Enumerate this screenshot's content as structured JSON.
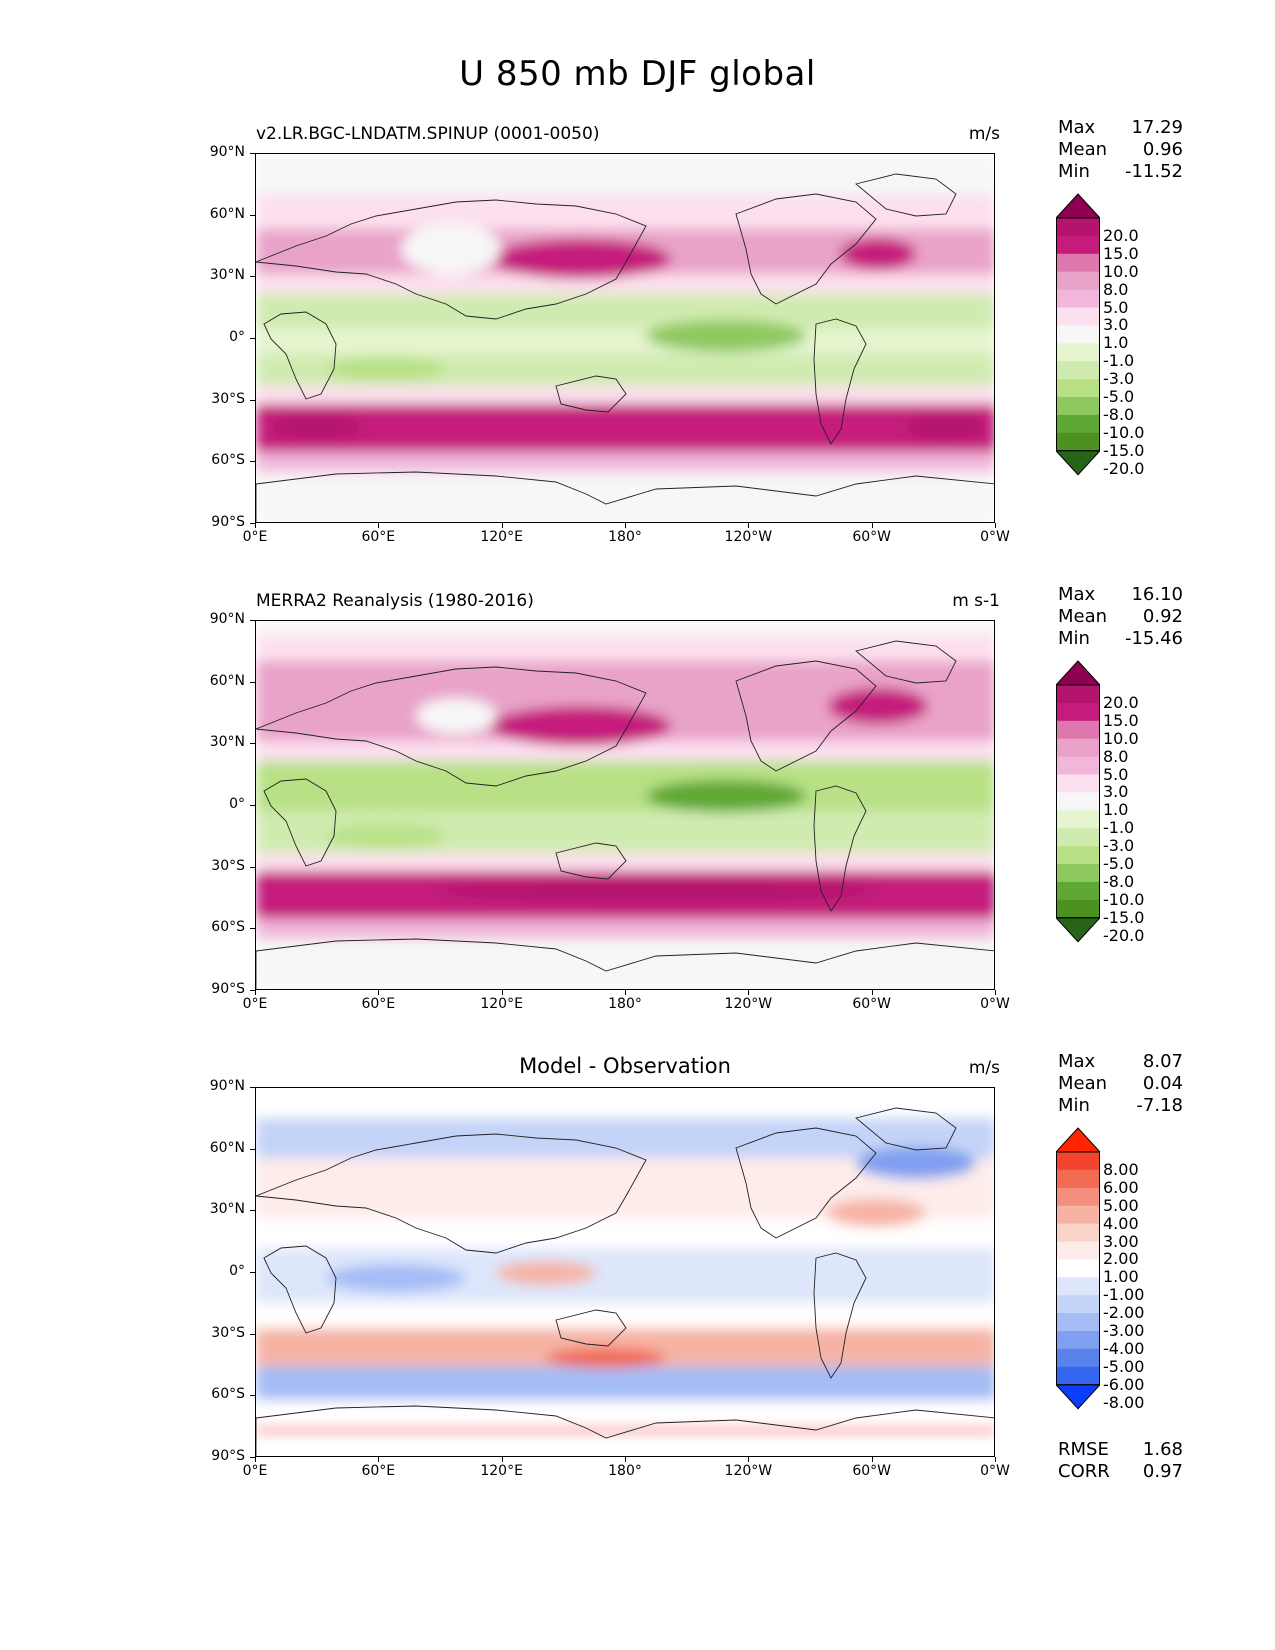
{
  "title": "U 850 mb DJF global",
  "axes": {
    "lat_labels": [
      "90°N",
      "60°N",
      "30°N",
      "0°",
      "30°S",
      "60°S",
      "90°S"
    ],
    "lon_labels": [
      "0°E",
      "60°E",
      "120°E",
      "180°",
      "120°W",
      "60°W",
      "0°W"
    ]
  },
  "panels": [
    {
      "title": "v2.LR.BGC-LNDATM.SPINUP (0001-0050)",
      "units": "m/s",
      "stats": [
        {
          "label": "Max",
          "value": "17.29"
        },
        {
          "label": "Mean",
          "value": "0.96"
        },
        {
          "label": "Min",
          "value": "-11.52"
        }
      ],
      "colorbar": {
        "labels": [
          "20.0",
          "15.0",
          "10.0",
          "8.0",
          "5.0",
          "3.0",
          "1.0",
          "-1.0",
          "-3.0",
          "-5.0",
          "-8.0",
          "-10.0",
          "-15.0",
          "-20.0"
        ],
        "colors": [
          "#8e0152",
          "#b5146e",
          "#c51b7d",
          "#de77ae",
          "#e9a3c9",
          "#f1b6da",
          "#fde0ef",
          "#f7f7f7",
          "#e6f5d0",
          "#d0ebb0",
          "#b8e186",
          "#8ec95f",
          "#5fa833",
          "#4d9221",
          "#276419"
        ]
      }
    },
    {
      "title": "MERRA2 Reanalysis (1980-2016)",
      "units": "m s-1",
      "stats": [
        {
          "label": "Max",
          "value": "16.10"
        },
        {
          "label": "Mean",
          "value": "0.92"
        },
        {
          "label": "Min",
          "value": "-15.46"
        }
      ],
      "colorbar": {
        "labels": [
          "20.0",
          "15.0",
          "10.0",
          "8.0",
          "5.0",
          "3.0",
          "1.0",
          "-1.0",
          "-3.0",
          "-5.0",
          "-8.0",
          "-10.0",
          "-15.0",
          "-20.0"
        ],
        "colors": [
          "#8e0152",
          "#b5146e",
          "#c51b7d",
          "#de77ae",
          "#e9a3c9",
          "#f1b6da",
          "#fde0ef",
          "#f7f7f7",
          "#e6f5d0",
          "#d0ebb0",
          "#b8e186",
          "#8ec95f",
          "#5fa833",
          "#4d9221",
          "#276419"
        ]
      }
    },
    {
      "title": "Model - Observation",
      "units": "m/s",
      "stats": [
        {
          "label": "Max",
          "value": "8.07"
        },
        {
          "label": "Mean",
          "value": "0.04"
        },
        {
          "label": "Min",
          "value": "-7.18"
        }
      ],
      "extra_stats": [
        {
          "label": "RMSE",
          "value": "1.68"
        },
        {
          "label": "CORR",
          "value": "0.97"
        }
      ],
      "colorbar": {
        "labels": [
          "8.00",
          "6.00",
          "5.00",
          "4.00",
          "3.00",
          "2.00",
          "1.00",
          "-1.00",
          "-2.00",
          "-3.00",
          "-4.00",
          "-5.00",
          "-6.00",
          "-8.00"
        ],
        "colors": [
          "#ff2600",
          "#f4442d",
          "#f26b55",
          "#f3907d",
          "#f6b3a4",
          "#f9d2c8",
          "#fdecea",
          "#ffffff",
          "#dde6fb",
          "#c4d3f8",
          "#a5bcf5",
          "#7f9ff0",
          "#5a82ec",
          "#3566f0",
          "#0a3dff"
        ]
      }
    }
  ],
  "bands": {
    "model": [
      {
        "y0": 0,
        "y1": 14,
        "level": 0.2
      },
      {
        "y0": 14,
        "y1": 40,
        "level": 0.5
      },
      {
        "y0": 40,
        "y1": 75,
        "level": 2.5
      },
      {
        "y0": 75,
        "y1": 120,
        "level": 5
      },
      {
        "y0": 120,
        "y1": 140,
        "level": 2
      },
      {
        "y0": 140,
        "y1": 175,
        "level": -5
      },
      {
        "y0": 175,
        "y1": 200,
        "level": -3
      },
      {
        "y0": 200,
        "y1": 232,
        "level": -5
      },
      {
        "y0": 232,
        "y1": 250,
        "level": 2
      },
      {
        "y0": 250,
        "y1": 298,
        "level": 12
      },
      {
        "y0": 298,
        "y1": 318,
        "level": 4
      },
      {
        "y0": 318,
        "y1": 370,
        "level": 0.2
      }
    ],
    "obs": [
      {
        "y0": 0,
        "y1": 14,
        "level": 0.5
      },
      {
        "y0": 14,
        "y1": 40,
        "level": 2
      },
      {
        "y0": 40,
        "y1": 75,
        "level": 5
      },
      {
        "y0": 75,
        "y1": 120,
        "level": 6
      },
      {
        "y0": 120,
        "y1": 140,
        "level": 1
      },
      {
        "y0": 140,
        "y1": 190,
        "level": -8
      },
      {
        "y0": 190,
        "y1": 232,
        "level": -4
      },
      {
        "y0": 232,
        "y1": 250,
        "level": 1
      },
      {
        "y0": 250,
        "y1": 298,
        "level": 12
      },
      {
        "y0": 298,
        "y1": 318,
        "level": 4
      },
      {
        "y0": 318,
        "y1": 370,
        "level": 0.2
      }
    ],
    "diff": [
      {
        "y0": 0,
        "y1": 30,
        "level": -0.5
      },
      {
        "y0": 30,
        "y1": 70,
        "level": -2.5
      },
      {
        "y0": 70,
        "y1": 130,
        "level": 1.5
      },
      {
        "y0": 130,
        "y1": 160,
        "level": 0
      },
      {
        "y0": 160,
        "y1": 215,
        "level": -1.5
      },
      {
        "y0": 215,
        "y1": 240,
        "level": 0.5
      },
      {
        "y0": 240,
        "y1": 278,
        "level": 3.5
      },
      {
        "y0": 278,
        "y1": 312,
        "level": -3.5
      },
      {
        "y0": 312,
        "y1": 340,
        "level": 0
      },
      {
        "y0": 340,
        "y1": 345,
        "level": 6
      },
      {
        "y0": 345,
        "y1": 370,
        "level": 0
      }
    ]
  },
  "blobs": {
    "model": [
      {
        "cx": 325,
        "cy": 105,
        "rx": 90,
        "ry": 20,
        "level": 12
      },
      {
        "cx": 622,
        "cy": 100,
        "rx": 38,
        "ry": 16,
        "level": 12
      },
      {
        "cx": 195,
        "cy": 95,
        "rx": 50,
        "ry": 25,
        "level": 0
      },
      {
        "cx": 470,
        "cy": 182,
        "rx": 80,
        "ry": 16,
        "level": -9
      },
      {
        "cx": 130,
        "cy": 215,
        "rx": 60,
        "ry": 12,
        "level": -6
      },
      {
        "cx": 690,
        "cy": 273,
        "rx": 40,
        "ry": 13,
        "level": 18
      },
      {
        "cx": 60,
        "cy": 273,
        "rx": 45,
        "ry": 12,
        "level": 15
      }
    ],
    "obs": [
      {
        "cx": 325,
        "cy": 105,
        "rx": 90,
        "ry": 20,
        "level": 12
      },
      {
        "cx": 622,
        "cy": 85,
        "rx": 50,
        "ry": 18,
        "level": 12
      },
      {
        "cx": 470,
        "cy": 175,
        "rx": 80,
        "ry": 16,
        "level": -11
      },
      {
        "cx": 130,
        "cy": 215,
        "rx": 60,
        "ry": 12,
        "level": -6
      },
      {
        "cx": 400,
        "cy": 270,
        "rx": 220,
        "ry": 12,
        "level": 18
      },
      {
        "cx": 200,
        "cy": 95,
        "rx": 40,
        "ry": 18,
        "level": 0
      }
    ],
    "diff": [
      {
        "cx": 140,
        "cy": 190,
        "rx": 70,
        "ry": 14,
        "level": -4
      },
      {
        "cx": 660,
        "cy": 75,
        "rx": 60,
        "ry": 16,
        "level": -5
      },
      {
        "cx": 290,
        "cy": 185,
        "rx": 50,
        "ry": 12,
        "level": 3
      },
      {
        "cx": 350,
        "cy": 270,
        "rx": 60,
        "ry": 10,
        "level": 5
      },
      {
        "cx": 620,
        "cy": 125,
        "rx": 50,
        "ry": 14,
        "level": 3
      },
      {
        "cx": 420,
        "cy": 300,
        "rx": 80,
        "ry": 8,
        "level": -4
      }
    ]
  }
}
